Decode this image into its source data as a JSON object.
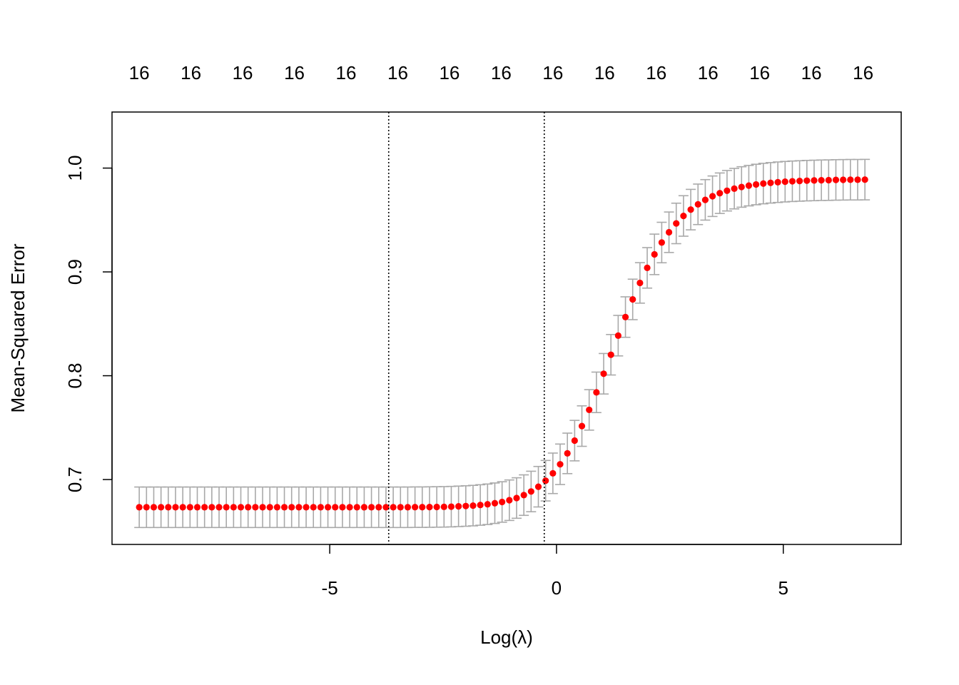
{
  "chart_data": {
    "type": "scatter",
    "title": "",
    "xlabel": "Log(λ)",
    "ylabel": "Mean-Squared Error",
    "xlim": [
      -9.8,
      7.6
    ],
    "ylim": [
      0.6375,
      1.054
    ],
    "x_ticks": [
      -5,
      0,
      5
    ],
    "x_tick_labels": [
      "-5",
      "0",
      "5"
    ],
    "y_ticks": [
      0.7,
      0.8,
      0.9,
      1.0
    ],
    "y_tick_labels": [
      "0.7",
      "0.8",
      "0.9",
      "1.0"
    ],
    "top_axis_labels": [
      "16",
      "16",
      "16",
      "16",
      "16",
      "16",
      "16",
      "16",
      "16",
      "16",
      "16",
      "16",
      "16",
      "16",
      "16"
    ],
    "top_axis_positions": [
      -9.2,
      -8.06,
      -6.92,
      -5.78,
      -4.64,
      -3.5,
      -2.36,
      -1.22,
      -0.08,
      1.06,
      2.2,
      3.34,
      4.48,
      5.62,
      6.76
    ],
    "vlines": [
      -3.7,
      -0.27
    ],
    "grid": false,
    "legend": "none",
    "point_color": "#ff0000",
    "errorbar_color": "#a9a9a9",
    "series": [
      {
        "x": [
          -9.2,
          -9.04,
          -8.88,
          -8.72,
          -8.56,
          -8.4,
          -8.24,
          -8.08,
          -7.92,
          -7.76,
          -7.6,
          -7.44,
          -7.28,
          -7.12,
          -6.96,
          -6.8,
          -6.64,
          -6.48,
          -6.32,
          -6.16,
          -6.0,
          -5.84,
          -5.68,
          -5.52,
          -5.36,
          -5.2,
          -5.04,
          -4.88,
          -4.72,
          -4.56,
          -4.4,
          -4.24,
          -4.08,
          -3.92,
          -3.76,
          -3.6,
          -3.44,
          -3.28,
          -3.12,
          -2.96,
          -2.8,
          -2.64,
          -2.48,
          -2.32,
          -2.16,
          -2.0,
          -1.84,
          -1.68,
          -1.52,
          -1.36,
          -1.2,
          -1.04,
          -0.88,
          -0.72,
          -0.56,
          -0.4,
          -0.24,
          -0.08,
          0.08,
          0.24,
          0.4,
          0.56,
          0.72,
          0.88,
          1.04,
          1.2,
          1.36,
          1.52,
          1.68,
          1.84,
          2.0,
          2.16,
          2.32,
          2.48,
          2.64,
          2.8,
          2.96,
          3.12,
          3.28,
          3.44,
          3.6,
          3.76,
          3.92,
          4.08,
          4.24,
          4.4,
          4.56,
          4.72,
          4.88,
          5.04,
          5.2,
          5.36,
          5.52,
          5.68,
          5.84,
          6.0,
          6.16,
          6.32,
          6.48,
          6.64,
          6.8
        ],
        "y": [
          0.6733,
          0.6733,
          0.6733,
          0.6733,
          0.6733,
          0.6733,
          0.6733,
          0.6733,
          0.6733,
          0.6733,
          0.6733,
          0.6733,
          0.6733,
          0.6733,
          0.6733,
          0.6733,
          0.6733,
          0.6733,
          0.6733,
          0.6733,
          0.6733,
          0.6733,
          0.6733,
          0.6733,
          0.6733,
          0.6733,
          0.6733,
          0.6733,
          0.6733,
          0.6733,
          0.6733,
          0.6733,
          0.6733,
          0.6733,
          0.6733,
          0.6733,
          0.6733,
          0.6733,
          0.6734,
          0.6734,
          0.6735,
          0.6736,
          0.6737,
          0.6739,
          0.6742,
          0.6745,
          0.6749,
          0.6755,
          0.6762,
          0.6772,
          0.6784,
          0.6801,
          0.6822,
          0.685,
          0.6885,
          0.6931,
          0.6989,
          0.706,
          0.7147,
          0.7252,
          0.7375,
          0.7515,
          0.7671,
          0.784,
          0.8019,
          0.8202,
          0.8386,
          0.8565,
          0.8735,
          0.8894,
          0.9039,
          0.9169,
          0.9283,
          0.9382,
          0.9467,
          0.9539,
          0.96,
          0.9651,
          0.9694,
          0.9729,
          0.9758,
          0.9782,
          0.9802,
          0.9818,
          0.9831,
          0.9842,
          0.9851,
          0.9858,
          0.9864,
          0.9869,
          0.9873,
          0.9876,
          0.9879,
          0.9881,
          0.9883,
          0.9884,
          0.9886,
          0.9887,
          0.9888,
          0.9888,
          0.9889
        ],
        "error": 0.0195
      }
    ]
  }
}
